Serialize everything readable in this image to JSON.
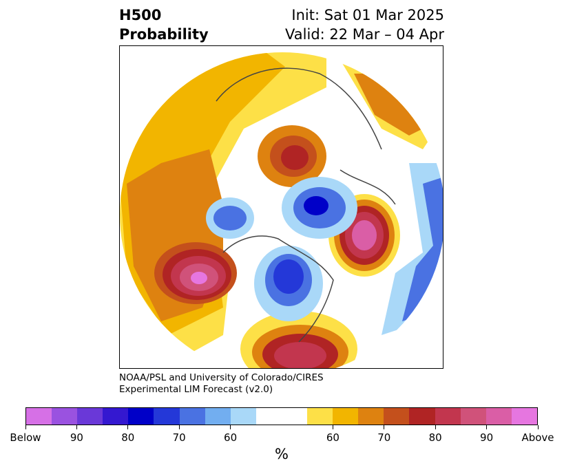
{
  "title": {
    "line1": "H500",
    "line2": "Probability"
  },
  "subtitle": {
    "init": "Init: Sat 01 Mar 2025",
    "valid": "Valid: 22 Mar – 04 Apr"
  },
  "credit": {
    "line1": "NOAA/PSL and University of Colorado/CIRES",
    "line2": "Experimental LIM Forecast (v2.0)"
  },
  "colorbar": {
    "colors": [
      "#d670e6",
      "#9a52e0",
      "#6a38d8",
      "#3418d0",
      "#0000c8",
      "#2438d8",
      "#4a72e2",
      "#72aef0",
      "#a9d8f8",
      "#ffffff",
      "#ffffff",
      "#fde047",
      "#f2b500",
      "#de8210",
      "#c4501c",
      "#b02424",
      "#c2364e",
      "#d0527a",
      "#da5ea6",
      "#e676e0"
    ],
    "ticks": [
      {
        "label": "Below",
        "frac": 0.0
      },
      {
        "label": "90",
        "frac": 0.1
      },
      {
        "label": "80",
        "frac": 0.2
      },
      {
        "label": "70",
        "frac": 0.3
      },
      {
        "label": "60",
        "frac": 0.4
      },
      {
        "label": "60",
        "frac": 0.6
      },
      {
        "label": "70",
        "frac": 0.7
      },
      {
        "label": "80",
        "frac": 0.8
      },
      {
        "label": "90",
        "frac": 0.9
      },
      {
        "label": "Above",
        "frac": 1.0
      }
    ],
    "unit": "%"
  }
}
